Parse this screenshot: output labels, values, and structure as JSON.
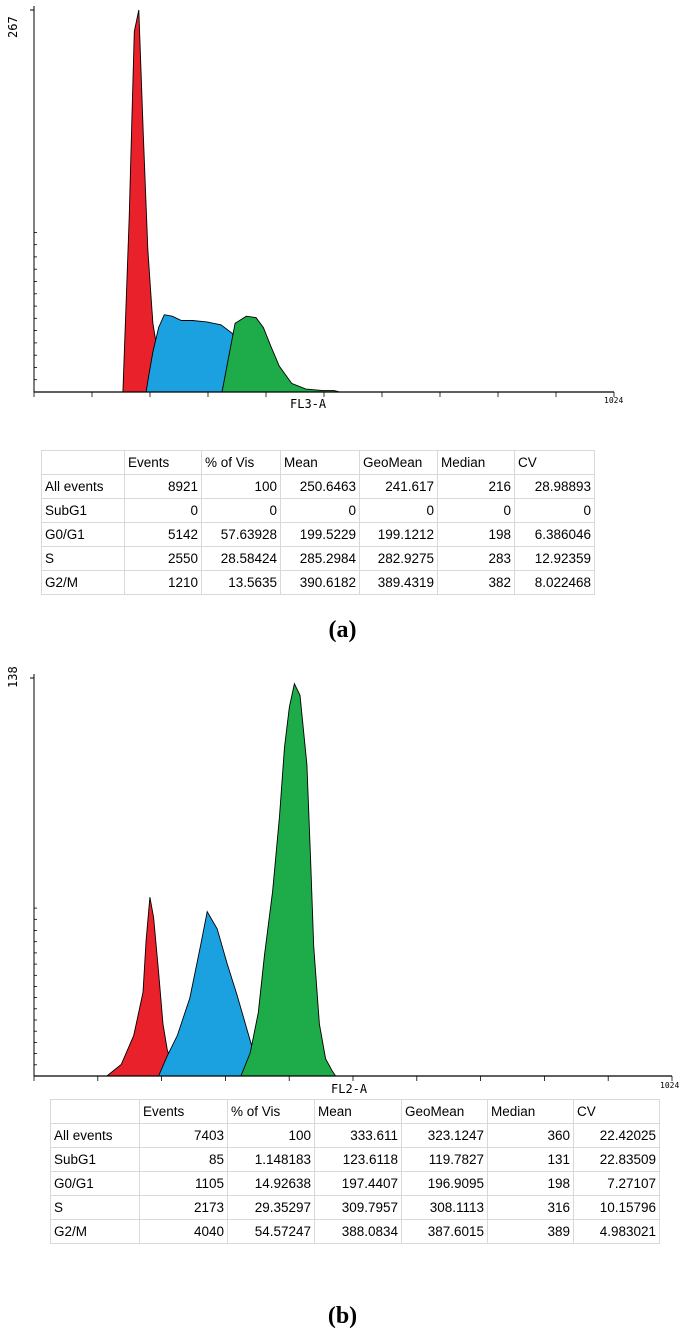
{
  "panels": [
    {
      "id": "a",
      "caption": "(a)",
      "chart_data": {
        "type": "area",
        "xlabel": "FL3-A",
        "xmax_label": "1024",
        "ymax_label": "267",
        "xlim": [
          0,
          1024
        ],
        "ylim": [
          0,
          267
        ],
        "series": [
          {
            "color": "#e8212b",
            "x": [
              157,
              168,
              177,
              185,
              193,
              201,
              206,
              210,
              218,
              226,
              235
            ],
            "y": [
              0,
              122,
              252,
              267,
              180,
              100,
              70,
              48,
              28,
              12,
              0
            ]
          },
          {
            "color": "#1ca1e0",
            "x": [
              198,
              202,
              210,
              220,
              230,
              244,
              260,
              280,
              305,
              330,
              350,
              365,
              377,
              385,
              389,
              391
            ],
            "y": [
              0,
              10,
              28,
              45,
              54,
              53,
              50,
              50,
              49,
              47,
              41,
              28,
              14,
              4,
              1,
              0
            ]
          },
          {
            "color": "#1eab4a",
            "x": [
              332,
              355,
              375,
              392,
              405,
              418,
              433,
              455,
              480,
              510,
              530,
              540
            ],
            "y": [
              0,
              48,
              53,
              52,
              45,
              32,
              18,
              6,
              2,
              1,
              1,
              0
            ]
          }
        ]
      },
      "table": {
        "headers": [
          "",
          "Events",
          "% of Vis",
          "Mean",
          "GeoMean",
          "Median",
          "CV"
        ],
        "rows": [
          [
            "All events",
            "8921",
            "100",
            "250.6463",
            "241.617",
            "216",
            "28.98893"
          ],
          [
            "SubG1",
            "0",
            "0",
            "0",
            "0",
            "0",
            "0"
          ],
          [
            "G0/G1",
            "5142",
            "57.63928",
            "199.5229",
            "199.1212",
            "198",
            "6.386046"
          ],
          [
            "S",
            "2550",
            "28.58424",
            "285.2984",
            "282.9275",
            "283",
            "12.92359"
          ],
          [
            "G2/M",
            "1210",
            "13.5635",
            "390.6182",
            "389.4319",
            "382",
            "8.022468"
          ]
        ]
      }
    },
    {
      "id": "b",
      "caption": "(b)",
      "chart_data": {
        "type": "area",
        "xlabel": "FL2-A",
        "xmax_label": "1024",
        "ymax_label": "138",
        "xlim": [
          0,
          1024
        ],
        "ylim": [
          0,
          138
        ],
        "series": [
          {
            "color": "#e8212b",
            "x": [
              117,
              140,
              160,
              175,
              180,
              186,
              192,
              200,
              207,
              214,
              222,
              232
            ],
            "y": [
              0,
              4,
              14,
              29,
              47,
              62,
              55,
              36,
              18,
              9,
              4,
              0
            ]
          },
          {
            "color": "#1ca1e0",
            "x": [
              200,
              214,
              230,
              250,
              268,
              278,
              294,
              310,
              326,
              342,
              358,
              371
            ],
            "y": [
              0,
              7,
              14,
              27,
              46,
              57,
              51,
              39,
              28,
              16,
              4,
              0
            ]
          },
          {
            "color": "#1eab4a",
            "x": [
              332,
              347,
              360,
              370,
              383,
              394,
              402,
              410,
              418,
              427,
              438,
              444,
              449,
              458,
              468,
              478,
              484
            ],
            "y": [
              0,
              8,
              22,
              42,
              64,
              90,
              114,
              128,
              136,
              132,
              108,
              75,
              45,
              18,
              6,
              2,
              0
            ]
          }
        ]
      },
      "table": {
        "headers": [
          "",
          "Events",
          "% of Vis",
          "Mean",
          "GeoMean",
          "Median",
          "CV"
        ],
        "rows": [
          [
            "All events",
            "7403",
            "100",
            "333.611",
            "323.1247",
            "360",
            "22.42025"
          ],
          [
            "SubG1",
            "85",
            "1.148183",
            "123.6118",
            "119.7827",
            "131",
            "22.83509"
          ],
          [
            "G0/G1",
            "1105",
            "14.92638",
            "197.4407",
            "196.9095",
            "198",
            "7.27107"
          ],
          [
            "S",
            "2173",
            "29.35297",
            "309.7957",
            "308.1113",
            "316",
            "10.15796"
          ],
          [
            "G2/M",
            "4040",
            "54.57247",
            "388.0834",
            "387.6015",
            "389",
            "4.983021"
          ]
        ]
      }
    }
  ]
}
